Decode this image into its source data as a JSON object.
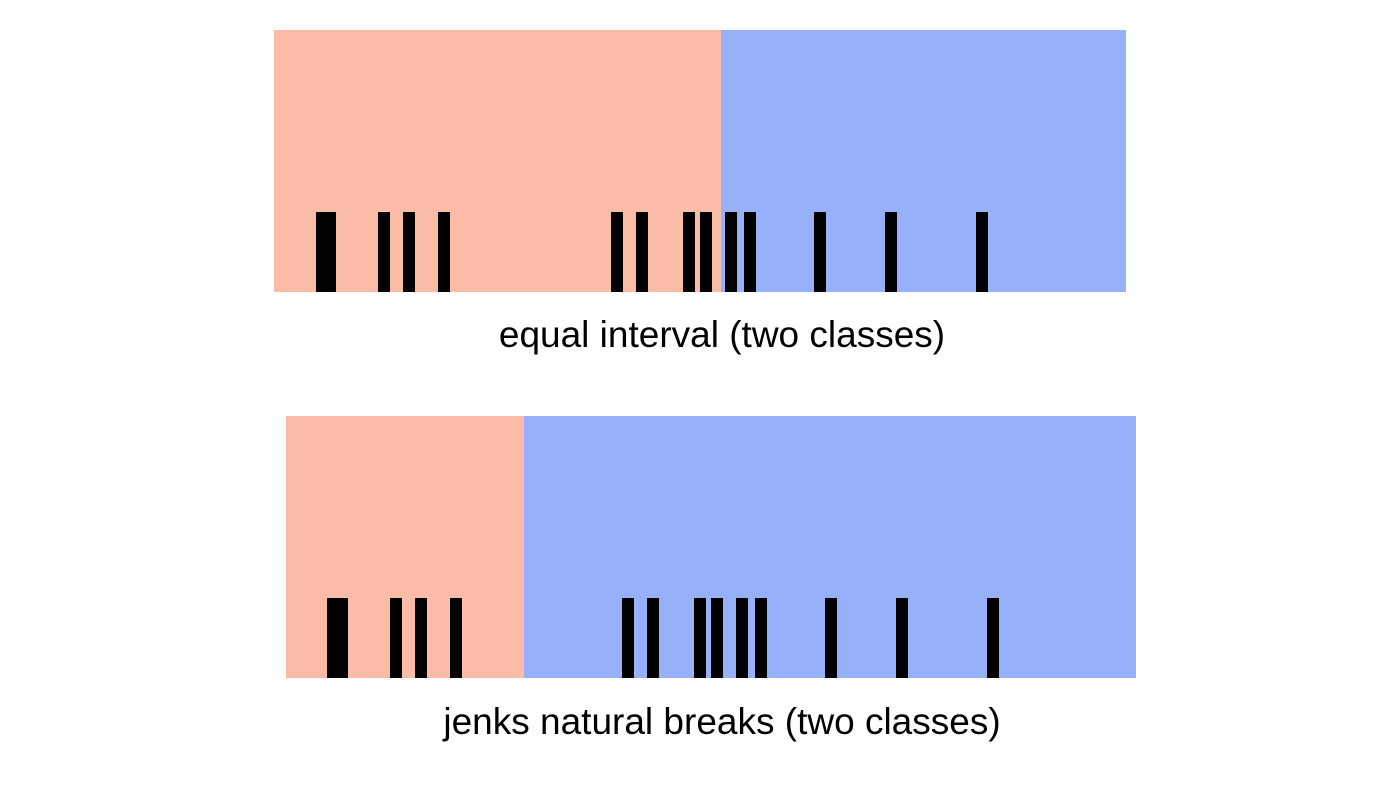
{
  "colors": {
    "class_low": "#fbbca7",
    "class_high": "#97b0fa",
    "tick": "#000000"
  },
  "data_values": [
    1,
    1.4,
    4,
    5.2,
    6.9,
    15.2,
    16.4,
    18.7,
    19.5,
    20.7,
    21.6,
    25,
    28.4,
    32.8
  ],
  "range": [
    -1,
    40
  ],
  "panels": [
    {
      "caption": "equal interval (two classes)",
      "breaks": [
        20.5
      ]
    },
    {
      "caption": "jenks natural breaks (two classes)",
      "breaks": [
        10.5
      ]
    }
  ]
}
